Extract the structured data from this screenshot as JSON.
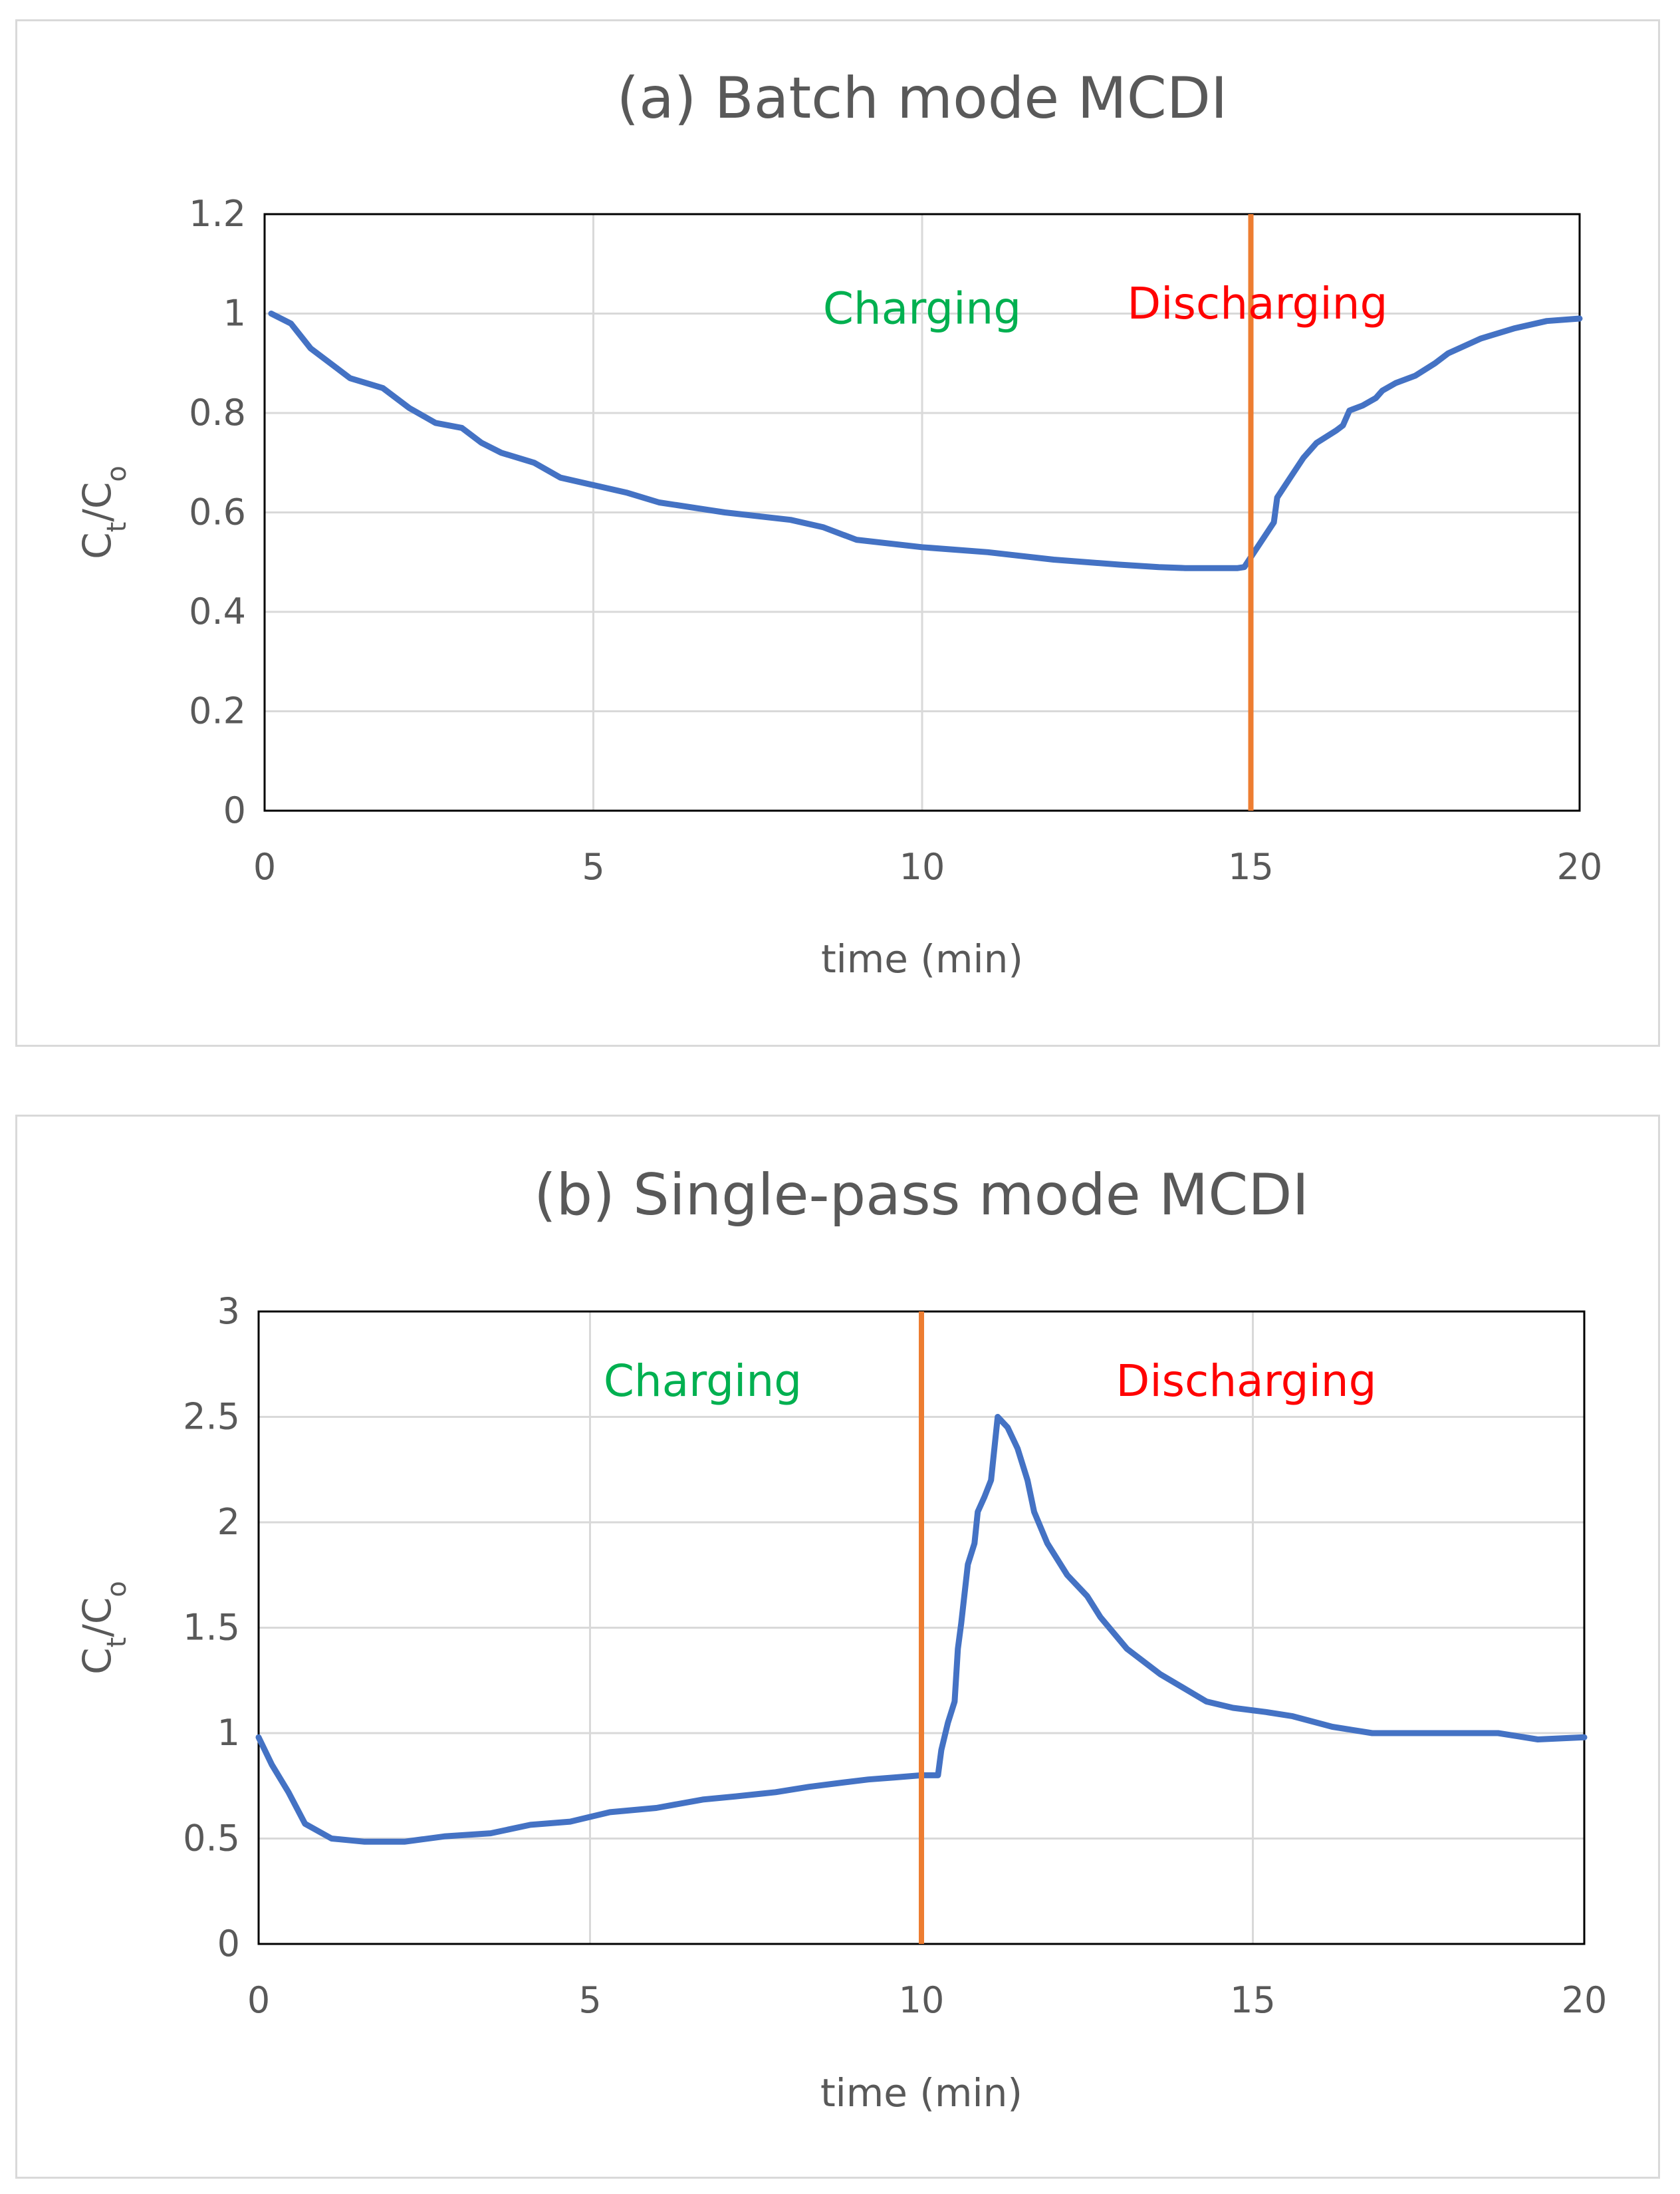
{
  "chart_data": [
    {
      "type": "line",
      "title": "(a) Batch mode MCDI",
      "xlabel": "time (min)",
      "ylabel": {
        "main": "C",
        "sub1": "t",
        "sep": "/C",
        "sub2": "o"
      },
      "xlim": [
        0,
        20
      ],
      "ylim": [
        0,
        1.2
      ],
      "xticks": [
        "0",
        "5",
        "10",
        "15",
        "20"
      ],
      "yticks": [
        "0",
        "0.2",
        "0.4",
        "0.6",
        "0.8",
        "1",
        "1.2"
      ],
      "grid": true,
      "annotations": [
        {
          "text": "Charging",
          "x": 10.0,
          "y": 0.98,
          "color": "#00B050"
        },
        {
          "text": "Discharging",
          "x": 15.1,
          "y": 0.99,
          "color": "#FF0000"
        }
      ],
      "vline": {
        "x": 15,
        "color": "#ED7D31"
      },
      "series": [
        {
          "color": "#4472C4",
          "x": [
            0.1,
            0.4,
            0.7,
            1.1,
            1.3,
            1.8,
            2.2,
            2.6,
            3.0,
            3.3,
            3.6,
            4.1,
            4.5,
            5.0,
            5.5,
            6.0,
            7.0,
            8.0,
            8.5,
            9.0,
            10.0,
            11.0,
            12.0,
            13.0,
            13.6,
            14.0,
            14.5,
            14.8,
            14.9,
            15.0,
            15.2,
            15.3,
            15.35,
            15.4,
            15.6,
            15.8,
            16.0,
            16.3,
            16.4,
            16.5,
            16.7,
            16.9,
            17.0,
            17.2,
            17.5,
            17.8,
            18.0,
            18.5,
            19.0,
            19.5,
            20.0
          ],
          "y": [
            1.0,
            0.98,
            0.93,
            0.89,
            0.87,
            0.85,
            0.81,
            0.78,
            0.77,
            0.74,
            0.72,
            0.7,
            0.67,
            0.655,
            0.64,
            0.62,
            0.6,
            0.585,
            0.57,
            0.545,
            0.53,
            0.52,
            0.505,
            0.495,
            0.49,
            0.488,
            0.488,
            0.488,
            0.49,
            0.51,
            0.55,
            0.57,
            0.58,
            0.63,
            0.67,
            0.71,
            0.74,
            0.765,
            0.775,
            0.805,
            0.815,
            0.83,
            0.845,
            0.86,
            0.875,
            0.9,
            0.92,
            0.95,
            0.97,
            0.985,
            0.99
          ]
        }
      ]
    },
    {
      "type": "line",
      "title": "(b) Single-pass mode MCDI",
      "xlabel": "time (min)",
      "ylabel": {
        "main": "C",
        "sub1": "t",
        "sep": "/C",
        "sub2": "o"
      },
      "xlim": [
        0,
        20
      ],
      "ylim": [
        0,
        3
      ],
      "xticks": [
        "0",
        "5",
        "10",
        "15",
        "20"
      ],
      "yticks": [
        "0",
        "0.5",
        "1",
        "1.5",
        "2",
        "2.5",
        "3"
      ],
      "grid": true,
      "annotations": [
        {
          "text": "Charging",
          "x": 6.7,
          "y": 2.6,
          "color": "#00B050"
        },
        {
          "text": "Discharging",
          "x": 14.9,
          "y": 2.6,
          "color": "#FF0000"
        }
      ],
      "vline": {
        "x": 10,
        "color": "#ED7D31"
      },
      "series": [
        {
          "color": "#4472C4",
          "x": [
            0.0,
            0.2,
            0.45,
            0.7,
            1.1,
            1.6,
            2.2,
            2.8,
            3.5,
            4.1,
            4.7,
            5.3,
            6.0,
            6.7,
            7.2,
            7.8,
            8.3,
            8.8,
            9.2,
            9.6,
            10.0,
            10.25,
            10.3,
            10.4,
            10.5,
            10.55,
            10.6,
            10.7,
            10.8,
            10.85,
            10.95,
            11.05,
            11.15,
            11.3,
            11.45,
            11.6,
            11.7,
            11.9,
            12.2,
            12.5,
            12.7,
            13.1,
            13.6,
            14.3,
            14.7,
            15.2,
            15.6,
            16.2,
            16.8,
            17.2,
            17.8,
            18.7,
            19.3,
            20.0
          ],
          "y": [
            0.98,
            0.85,
            0.72,
            0.57,
            0.5,
            0.485,
            0.485,
            0.51,
            0.525,
            0.565,
            0.58,
            0.625,
            0.645,
            0.685,
            0.7,
            0.72,
            0.745,
            0.765,
            0.78,
            0.79,
            0.8,
            0.8,
            0.92,
            1.05,
            1.15,
            1.4,
            1.52,
            1.8,
            1.9,
            2.05,
            2.12,
            2.2,
            2.5,
            2.45,
            2.35,
            2.2,
            2.05,
            1.9,
            1.75,
            1.65,
            1.55,
            1.4,
            1.28,
            1.15,
            1.12,
            1.1,
            1.08,
            1.03,
            1.0,
            1.0,
            1.0,
            1.0,
            0.97,
            0.98
          ]
        }
      ]
    }
  ]
}
